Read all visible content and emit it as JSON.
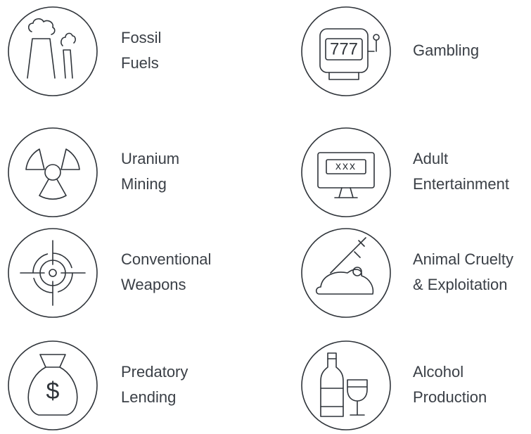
{
  "items": [
    {
      "lines": [
        "Fossil",
        "Fuels"
      ]
    },
    {
      "lines": [
        "Gambling"
      ],
      "icon_text": "777"
    },
    {
      "lines": [
        "Uranium",
        "Mining"
      ]
    },
    {
      "lines": [
        "Adult",
        "Entertainment"
      ],
      "icon_text": "xxx"
    },
    {
      "lines": [
        "Conventional",
        "Weapons"
      ]
    },
    {
      "lines": [
        "Animal Cruelty",
        "& Exploitation"
      ]
    },
    {
      "lines": [
        "Predatory",
        "Lending"
      ],
      "icon_text": "$"
    },
    {
      "lines": [
        "Alcohol",
        "Production"
      ]
    }
  ]
}
